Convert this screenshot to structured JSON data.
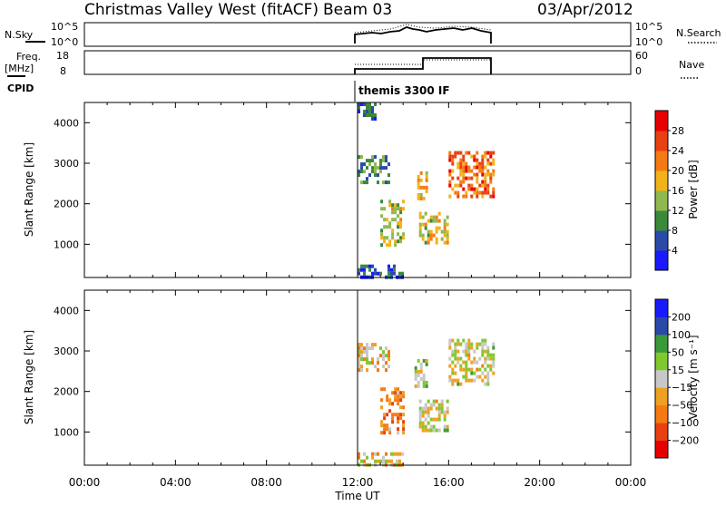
{
  "header": {
    "station": "Christmas Valley West (fitACF)",
    "beam": "Beam 03",
    "date": "03/Apr/2012"
  },
  "top_panels": {
    "nsky_label": "N.Sky",
    "nsearch_label": "N.Search",
    "nsky_ticks": [
      "10^5",
      "10^0"
    ],
    "nsky_right_ticks": [
      "10^5",
      "10^0"
    ],
    "freq_label": "Freq.",
    "freq_unit": "[MHz]",
    "freq_ticks": [
      "18",
      "8"
    ],
    "nave_label": "Nave",
    "nave_ticks": [
      "60",
      "0"
    ],
    "cpid_label": "CPID",
    "cpid_text": "themis 3300 IF"
  },
  "colors": {
    "power_scale": [
      "#1a1aff",
      "#2a4aaa",
      "#3a8a3a",
      "#8fb84f",
      "#f2b31a",
      "#f57a14",
      "#e84010",
      "#e60000"
    ],
    "velocity_scale": [
      "#e60000",
      "#e84010",
      "#f57a14",
      "#f0a020",
      "#c8c8c8",
      "#80c830",
      "#3a9a3a",
      "#2a4aaa",
      "#1a1aff"
    ],
    "axis": "#000000"
  },
  "power_colorbar": {
    "label": "Power [dB]",
    "ticks": [
      "28",
      "24",
      "20",
      "16",
      "12",
      "8",
      "4"
    ]
  },
  "velocity_colorbar": {
    "label": "Velocity [m s⁻¹]",
    "ticks": [
      "200",
      "100",
      "50",
      "15",
      "−15",
      "−50",
      "−100",
      "−200"
    ]
  },
  "x_axis": {
    "label": "Time UT",
    "ticks": [
      "00:00",
      "04:00",
      "08:00",
      "12:00",
      "16:00",
      "20:00",
      "00:00"
    ]
  },
  "chart_data": {
    "type": "heatmap",
    "xlabel": "Time UT",
    "xlim_hours": [
      0,
      24
    ],
    "data_window_hours": [
      12,
      18
    ],
    "panels": [
      {
        "name": "Power",
        "ylabel": "Slant Range [km]",
        "yticks": [
          1000,
          2000,
          3000,
          4000
        ],
        "ylim_km": [
          180,
          4500
        ],
        "color_label": "Power [dB]",
        "color_range": [
          0,
          30
        ],
        "regions": [
          {
            "t": [
              12.0,
              13.4
            ],
            "r": [
              2500,
              3200
            ],
            "value": 10
          },
          {
            "t": [
              12.0,
              12.8
            ],
            "r": [
              4100,
              4500
            ],
            "value": 6
          },
          {
            "t": [
              13.0,
              14.0
            ],
            "r": [
              1000,
              2100
            ],
            "value": 14
          },
          {
            "t": [
              14.5,
              15.0
            ],
            "r": [
              2100,
              2800
            ],
            "value": 18
          },
          {
            "t": [
              14.7,
              16.0
            ],
            "r": [
              1000,
              1800
            ],
            "value": 16
          },
          {
            "t": [
              16.0,
              18.0
            ],
            "r": [
              2200,
              3300
            ],
            "value": 22
          },
          {
            "t": [
              12.0,
              14.0
            ],
            "r": [
              180,
              500
            ],
            "value": 6
          }
        ]
      },
      {
        "name": "Velocity",
        "ylabel": "Slant Range [km]",
        "yticks": [
          1000,
          2000,
          3000,
          4000
        ],
        "ylim_km": [
          180,
          4500
        ],
        "color_label": "Velocity [m s⁻¹]",
        "color_range": [
          -250,
          250
        ],
        "regions": [
          {
            "t": [
              12.0,
              13.4
            ],
            "r": [
              2500,
              3200
            ],
            "value": -30
          },
          {
            "t": [
              13.0,
              14.0
            ],
            "r": [
              1000,
              2100
            ],
            "value": -100
          },
          {
            "t": [
              14.5,
              15.0
            ],
            "r": [
              2100,
              2800
            ],
            "value": 30
          },
          {
            "t": [
              14.7,
              16.0
            ],
            "r": [
              1000,
              1800
            ],
            "value": 0
          },
          {
            "t": [
              16.0,
              18.0
            ],
            "r": [
              2200,
              3300
            ],
            "value": 0
          },
          {
            "t": [
              12.0,
              14.0
            ],
            "r": [
              180,
              500
            ],
            "value": -30
          }
        ]
      }
    ]
  }
}
